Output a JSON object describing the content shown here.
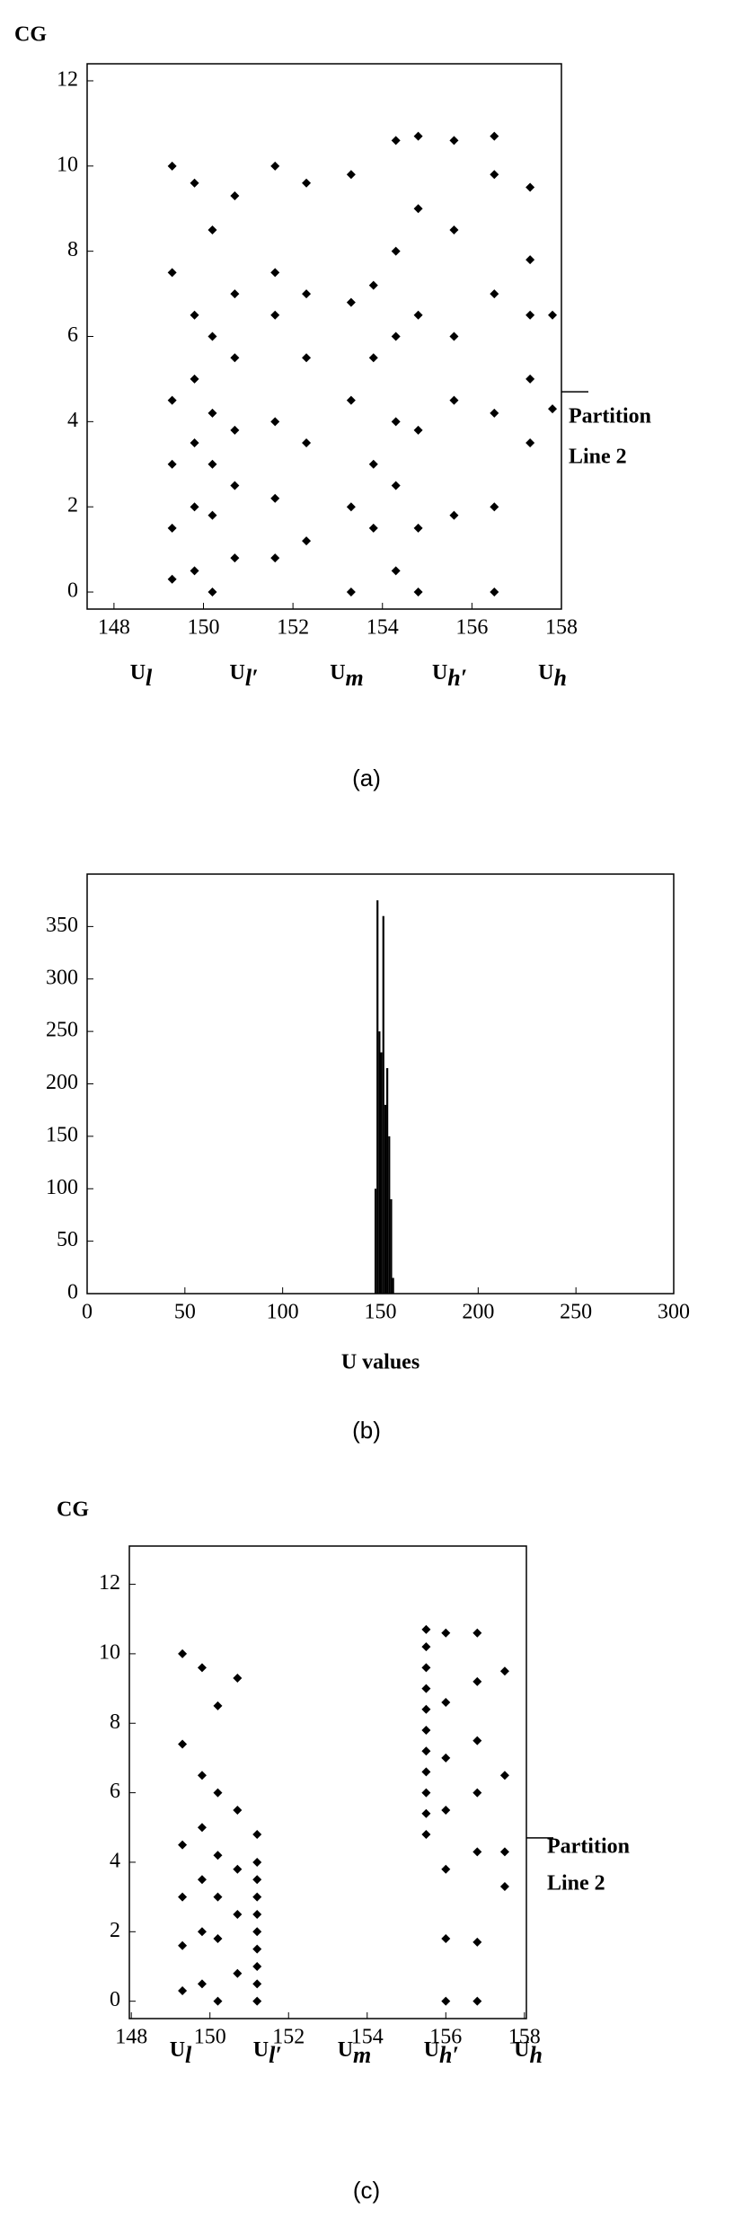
{
  "chart_data": [
    {
      "type": "scatter",
      "ylabel": "CG",
      "caption": "(a)",
      "color": "#000000",
      "xlim": [
        147.4,
        158
      ],
      "ylim": [
        -0.4,
        12.4
      ],
      "xticks": [
        148,
        150,
        152,
        154,
        156,
        158
      ],
      "yticks": [
        0,
        2,
        4,
        6,
        8,
        10,
        12
      ],
      "x": [
        149.3,
        149.3,
        149.3,
        149.3,
        149.3,
        149.3,
        149.8,
        149.8,
        149.8,
        149.8,
        149.8,
        149.8,
        150.2,
        150.2,
        150.2,
        150.2,
        150.2,
        150.2,
        150.7,
        150.7,
        150.7,
        150.7,
        150.7,
        150.7,
        151.6,
        151.6,
        151.6,
        151.6,
        151.6,
        151.6,
        152.3,
        152.3,
        152.3,
        152.3,
        152.3,
        153.3,
        153.3,
        153.3,
        153.3,
        153.3,
        153.8,
        153.8,
        153.8,
        153.8,
        154.3,
        154.3,
        154.3,
        154.3,
        154.3,
        154.3,
        154.8,
        154.8,
        154.8,
        154.8,
        154.8,
        154.8,
        155.6,
        155.6,
        155.6,
        155.6,
        155.6,
        156.5,
        156.5,
        156.5,
        156.5,
        156.5,
        156.5,
        157.3,
        157.3,
        157.3,
        157.3,
        157.3,
        157.8,
        157.8
      ],
      "y": [
        0.3,
        1.5,
        3,
        4.5,
        7.5,
        10,
        0.5,
        2,
        3.5,
        5,
        6.5,
        9.6,
        0,
        1.8,
        3,
        4.2,
        6,
        8.5,
        0.8,
        2.5,
        3.8,
        5.5,
        7,
        9.3,
        0.8,
        2.2,
        4,
        6.5,
        7.5,
        10,
        1.2,
        3.5,
        5.5,
        7,
        9.6,
        0,
        2,
        4.5,
        6.8,
        9.8,
        1.5,
        3,
        5.5,
        7.2,
        0.5,
        2.5,
        4,
        6,
        8,
        10.6,
        0,
        1.5,
        3.8,
        6.5,
        9,
        10.7,
        1.8,
        4.5,
        6,
        8.5,
        10.6,
        0,
        2,
        4.2,
        7,
        9.8,
        10.7,
        3.5,
        5,
        6.5,
        7.8,
        9.5,
        6.5,
        4.3
      ],
      "partition_y": 4.7,
      "partition_label": [
        "Partition",
        "Line 2"
      ],
      "u_labels": [
        {
          "main": "U",
          "sub": "l"
        },
        {
          "main": "U",
          "sub": "l′"
        },
        {
          "main": "U",
          "sub": "m"
        },
        {
          "main": "U",
          "sub": "h′"
        },
        {
          "main": "U",
          "sub": "h"
        }
      ]
    },
    {
      "type": "histogram",
      "caption": "(b)",
      "xlabel": "U values",
      "color": "#000000",
      "xlim": [
        0,
        300
      ],
      "ylim": [
        0,
        400
      ],
      "xticks": [
        0,
        50,
        100,
        150,
        200,
        250,
        300
      ],
      "yticks": [
        0,
        50,
        100,
        150,
        200,
        250,
        300,
        350
      ],
      "bins": [
        147,
        148,
        149,
        150,
        151,
        152,
        153,
        154,
        155,
        156,
        157
      ],
      "counts": [
        100,
        375,
        250,
        230,
        360,
        180,
        215,
        150,
        90,
        15
      ]
    },
    {
      "type": "scatter",
      "ylabel": "CG",
      "caption": "(c)",
      "color": "#000000",
      "xlim": [
        147.95,
        158.05
      ],
      "ylim": [
        -0.5,
        13.1
      ],
      "xticks": [
        148,
        150,
        152,
        154,
        156,
        158
      ],
      "yticks": [
        0,
        2,
        4,
        6,
        8,
        10,
        12
      ],
      "x": [
        149.3,
        149.3,
        149.3,
        149.3,
        149.3,
        149.3,
        149.8,
        149.8,
        149.8,
        149.8,
        149.8,
        149.8,
        150.2,
        150.2,
        150.2,
        150.2,
        150.2,
        150.2,
        150.7,
        150.7,
        150.7,
        150.7,
        150.7,
        151.2,
        151.2,
        151.2,
        151.2,
        151.2,
        151.2,
        151.2,
        151.2,
        151.2,
        151.2,
        155.5,
        155.5,
        155.5,
        155.5,
        155.5,
        155.5,
        155.5,
        155.5,
        155.5,
        155.5,
        155.5,
        156,
        156,
        156,
        156,
        156,
        156,
        156,
        156.8,
        156.8,
        156.8,
        156.8,
        156.8,
        156.8,
        156.8,
        157.5,
        157.5,
        157.5,
        157.5
      ],
      "y": [
        0.3,
        1.6,
        3,
        4.5,
        7.4,
        10,
        0.5,
        2,
        3.5,
        5,
        6.5,
        9.6,
        0,
        1.8,
        3,
        4.2,
        6,
        8.5,
        0.8,
        2.5,
        3.8,
        5.5,
        9.3,
        0,
        0.5,
        1,
        1.5,
        2,
        2.5,
        3,
        3.5,
        4,
        4.8,
        4.8,
        5.4,
        6,
        6.6,
        7.2,
        7.8,
        8.4,
        9,
        9.6,
        10.2,
        10.7,
        0,
        1.8,
        3.8,
        5.5,
        7,
        8.6,
        10.6,
        0,
        1.7,
        4.3,
        6,
        7.5,
        9.2,
        10.6,
        3.3,
        4.3,
        6.5,
        9.5
      ],
      "partition_y": 4.7,
      "partition_label": [
        "Partition",
        "Line 2"
      ],
      "u_labels": [
        {
          "main": "U",
          "sub": "l"
        },
        {
          "main": "U",
          "sub": "l′"
        },
        {
          "main": "U",
          "sub": "m"
        },
        {
          "main": "U",
          "sub": "h′"
        },
        {
          "main": "U",
          "sub": "h"
        }
      ]
    }
  ]
}
